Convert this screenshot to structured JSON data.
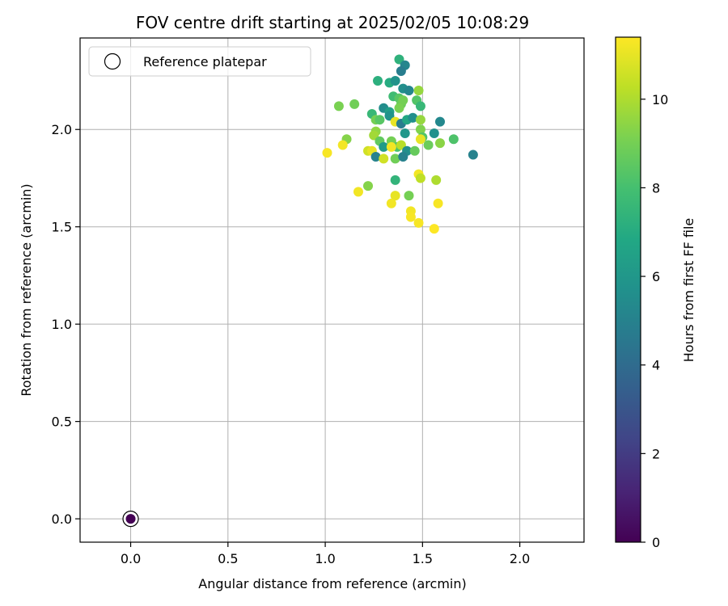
{
  "chart_data": {
    "type": "scatter",
    "title": "FOV centre drift starting at 2025/02/05 10:08:29",
    "xlabel": "Angular distance from reference (arcmin)",
    "ylabel": "Rotation from reference (arcmin)",
    "xlim": [
      -0.26,
      2.33
    ],
    "ylim": [
      -0.12,
      2.47
    ],
    "xticks": [
      "0.0",
      "0.5",
      "1.0",
      "1.5",
      "2.0"
    ],
    "xtick_values": [
      0.0,
      0.5,
      1.0,
      1.5,
      2.0
    ],
    "yticks": [
      "0.0",
      "0.5",
      "1.0",
      "1.5",
      "2.0"
    ],
    "ytick_values": [
      0.0,
      0.5,
      1.0,
      1.5,
      2.0
    ],
    "grid": true,
    "legend": {
      "placement": "top-left",
      "entries": [
        "Reference platepar"
      ]
    },
    "colormap": "viridis",
    "colorbar": {
      "label": "Hours from first FF file",
      "range": [
        0,
        11.4
      ],
      "ticks": [
        "0",
        "2",
        "4",
        "6",
        "8",
        "10"
      ],
      "tick_values": [
        0,
        2,
        4,
        6,
        8,
        10
      ]
    },
    "reference_point": {
      "x": 0.0,
      "y": 0.0,
      "hours": 0.0
    },
    "series": [
      {
        "points": [
          [
            1.38,
            2.36,
            7.3
          ],
          [
            1.41,
            2.33,
            5.2
          ],
          [
            1.39,
            2.3,
            4.8
          ],
          [
            1.27,
            2.25,
            7.2
          ],
          [
            1.33,
            2.24,
            7.0
          ],
          [
            1.36,
            2.25,
            5.8
          ],
          [
            1.4,
            2.21,
            5.6
          ],
          [
            1.43,
            2.2,
            5.2
          ],
          [
            1.48,
            2.2,
            9.6
          ],
          [
            1.35,
            2.17,
            7.8
          ],
          [
            1.38,
            2.16,
            8.4
          ],
          [
            1.39,
            2.13,
            8.8
          ],
          [
            1.4,
            2.15,
            9.0
          ],
          [
            1.47,
            2.15,
            8.3
          ],
          [
            1.49,
            2.12,
            7.6
          ],
          [
            1.07,
            2.12,
            9.1
          ],
          [
            1.15,
            2.13,
            8.9
          ],
          [
            1.3,
            2.11,
            5.5
          ],
          [
            1.33,
            2.09,
            6.4
          ],
          [
            1.24,
            2.08,
            7.6
          ],
          [
            1.26,
            2.05,
            9.0
          ],
          [
            1.28,
            2.05,
            8.4
          ],
          [
            1.33,
            2.07,
            5.8
          ],
          [
            1.36,
            2.04,
            11.0
          ],
          [
            1.39,
            2.03,
            4.8
          ],
          [
            1.42,
            2.05,
            6.8
          ],
          [
            1.45,
            2.06,
            5.6
          ],
          [
            1.49,
            2.05,
            9.6
          ],
          [
            1.59,
            2.04,
            5.3
          ],
          [
            1.26,
            1.99,
            9.5
          ],
          [
            1.25,
            1.97,
            9.8
          ],
          [
            1.28,
            1.94,
            8.6
          ],
          [
            1.3,
            1.91,
            6.2
          ],
          [
            1.34,
            1.94,
            9.0
          ],
          [
            1.37,
            1.91,
            8.1
          ],
          [
            1.39,
            1.92,
            10.2
          ],
          [
            1.41,
            1.98,
            6.0
          ],
          [
            1.42,
            1.89,
            5.6
          ],
          [
            1.46,
            1.89,
            8.7
          ],
          [
            1.49,
            2.0,
            9.2
          ],
          [
            1.5,
            1.96,
            8.3
          ],
          [
            1.49,
            1.95,
            11.0
          ],
          [
            1.53,
            1.92,
            8.8
          ],
          [
            1.56,
            1.98,
            5.7
          ],
          [
            1.59,
            1.93,
            9.4
          ],
          [
            1.66,
            1.95,
            8.2
          ],
          [
            1.76,
            1.87,
            5.0
          ],
          [
            1.11,
            1.95,
            9.3
          ],
          [
            1.09,
            1.92,
            11.2
          ],
          [
            1.01,
            1.88,
            11.3
          ],
          [
            1.22,
            1.89,
            10.6
          ],
          [
            1.24,
            1.89,
            11.0
          ],
          [
            1.26,
            1.86,
            5.0
          ],
          [
            1.3,
            1.85,
            10.6
          ],
          [
            1.34,
            1.91,
            11.2
          ],
          [
            1.36,
            1.85,
            8.9
          ],
          [
            1.4,
            1.86,
            5.0
          ],
          [
            1.22,
            1.71,
            9.3
          ],
          [
            1.36,
            1.74,
            7.4
          ],
          [
            1.48,
            1.77,
            11.2
          ],
          [
            1.49,
            1.75,
            10.3
          ],
          [
            1.57,
            1.74,
            10.0
          ],
          [
            1.17,
            1.68,
            11.2
          ],
          [
            1.36,
            1.66,
            11.0
          ],
          [
            1.43,
            1.66,
            9.0
          ],
          [
            1.34,
            1.62,
            11.2
          ],
          [
            1.58,
            1.62,
            11.3
          ],
          [
            1.44,
            1.58,
            11.2
          ],
          [
            1.44,
            1.55,
            11.3
          ],
          [
            1.48,
            1.52,
            11.3
          ],
          [
            1.56,
            1.49,
            11.4
          ],
          [
            1.38,
            2.11,
            9.1
          ]
        ]
      }
    ]
  }
}
